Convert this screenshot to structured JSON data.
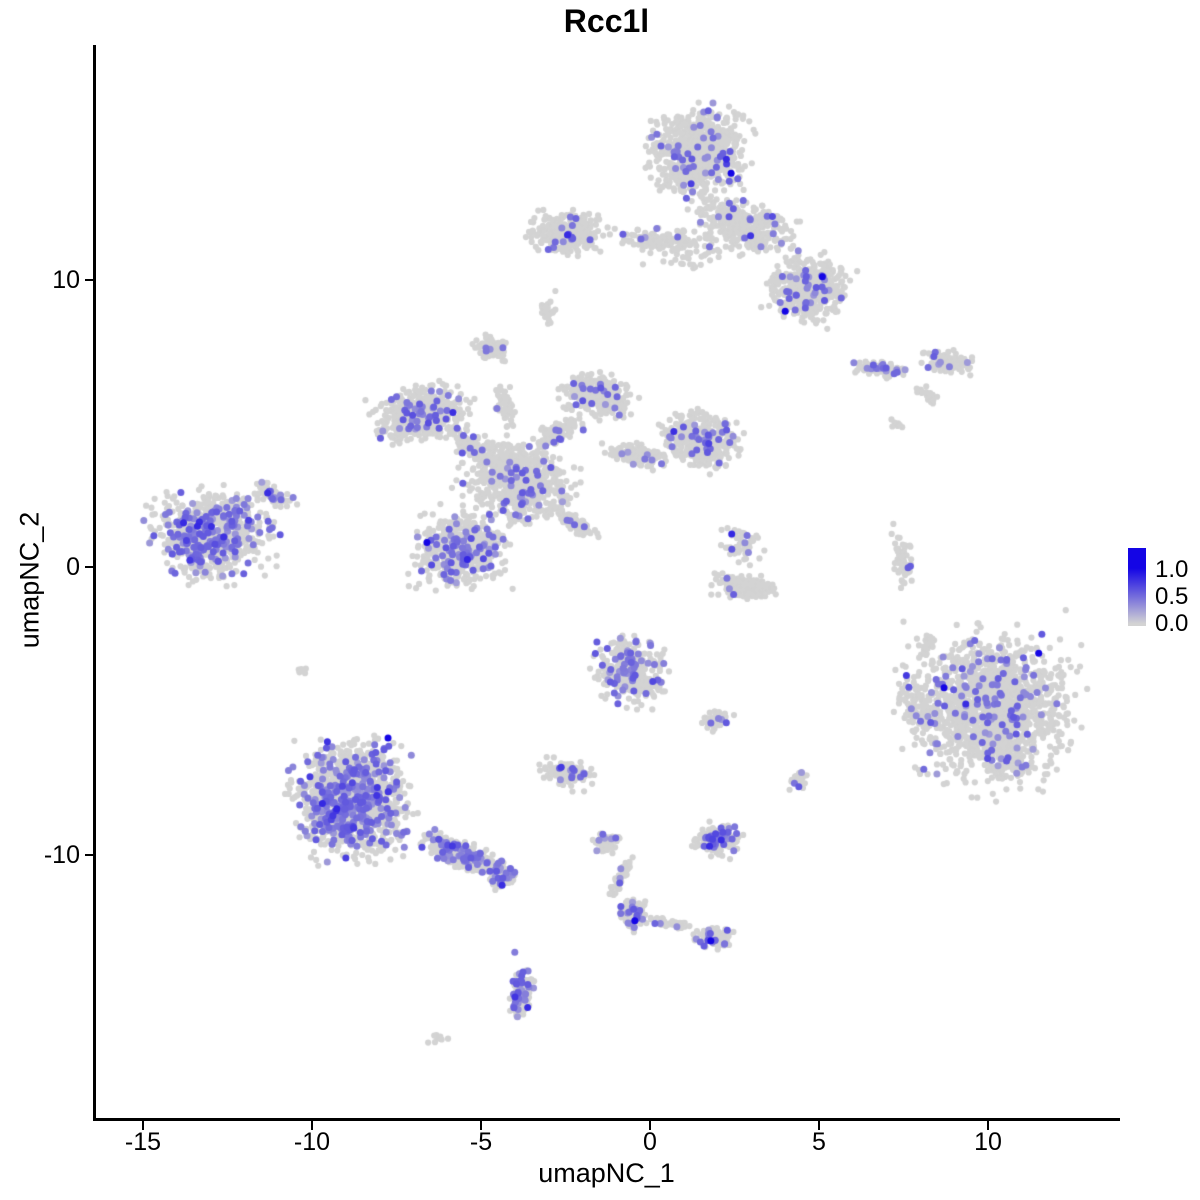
{
  "title": "Rcc1l",
  "axes": {
    "x_label": "umapNC_1",
    "y_label": "umapNC_2",
    "x_tick_labels": [
      "-15",
      "-10",
      "-5",
      "0",
      "5",
      "10"
    ],
    "x_tick_values": [
      -15,
      -10,
      -5,
      0,
      5,
      10
    ],
    "y_tick_labels": [
      "-10",
      "0",
      "10"
    ],
    "y_tick_values": [
      -10,
      0,
      10
    ]
  },
  "legend": {
    "tick_labels": [
      "1.0",
      "0.5",
      "0.0"
    ],
    "tick_values": [
      1.0,
      0.5,
      0.0
    ]
  },
  "chart_data": {
    "type": "scatter",
    "title": "Rcc1l",
    "xlabel": "umapNC_1",
    "ylabel": "umapNC_2",
    "xlim": [
      -16.4,
      13.9
    ],
    "ylim": [
      -19.2,
      18.2
    ],
    "grid": false,
    "legend_position": "right",
    "colorbar": {
      "low": 0.0,
      "high": 1.0,
      "low_color": "#D3D3D3",
      "high_color": "#1405E5"
    },
    "seed": 1337,
    "clusters": [
      {
        "name": "top-main-blob",
        "cx": 1.5,
        "cy": 14.5,
        "rx": 1.9,
        "ry": 2.0,
        "rot": 0,
        "n": 700,
        "f": 0.07
      },
      {
        "name": "top-neck",
        "cx": 2.8,
        "cy": 11.9,
        "rx": 2.0,
        "ry": 1.1,
        "rot": -20,
        "n": 330,
        "f": 0.05
      },
      {
        "name": "top-right-lobe",
        "cx": 4.7,
        "cy": 9.7,
        "rx": 1.5,
        "ry": 1.5,
        "rot": -30,
        "n": 400,
        "f": 0.08
      },
      {
        "name": "top-left-arm",
        "cx": -2.5,
        "cy": 11.6,
        "rx": 1.4,
        "ry": 1.0,
        "rot": 0,
        "n": 240,
        "f": 0.06
      },
      {
        "name": "top-arm-connector",
        "cx": 0.2,
        "cy": 11.4,
        "rx": 1.5,
        "ry": 0.45,
        "rot": 0,
        "n": 110,
        "f": 0.04
      },
      {
        "name": "small-grey-blob",
        "cx": -3.1,
        "cy": 8.9,
        "rx": 0.4,
        "ry": 0.6,
        "rot": 0,
        "n": 26,
        "f": 0
      },
      {
        "name": "top-sparse",
        "cx": 1.3,
        "cy": 11.0,
        "rx": 1.7,
        "ry": 1.0,
        "rot": 0,
        "n": 50,
        "f": 0.04
      },
      {
        "name": "small-left-blob",
        "cx": -4.7,
        "cy": 7.6,
        "rx": 0.65,
        "ry": 0.6,
        "rot": 0,
        "n": 80,
        "f": 0.05
      },
      {
        "name": "mid-upperleft-lobe",
        "cx": -6.8,
        "cy": 5.3,
        "rx": 1.8,
        "ry": 1.2,
        "rot": 20,
        "n": 450,
        "f": 0.1
      },
      {
        "name": "mid-top-lobe",
        "cx": -1.5,
        "cy": 6.0,
        "rx": 1.4,
        "ry": 0.95,
        "rot": -15,
        "n": 300,
        "f": 0.06
      },
      {
        "name": "mid-right-lobe",
        "cx": 1.5,
        "cy": 4.4,
        "rx": 1.5,
        "ry": 1.2,
        "rot": -20,
        "n": 400,
        "f": 0.08
      },
      {
        "name": "mid-central",
        "cx": -3.9,
        "cy": 3.0,
        "rx": 2.0,
        "ry": 1.7,
        "rot": -30,
        "n": 650,
        "f": 0.07
      },
      {
        "name": "mid-conn-a",
        "cx": -5.3,
        "cy": 4.2,
        "rx": 1.2,
        "ry": 0.5,
        "rot": -35,
        "n": 130,
        "f": 0.05
      },
      {
        "name": "mid-conn-b",
        "cx": -2.7,
        "cy": 4.7,
        "rx": 1.0,
        "ry": 0.45,
        "rot": 35,
        "n": 110,
        "f": 0.05
      },
      {
        "name": "mid-conn-c",
        "cx": -0.4,
        "cy": 3.9,
        "rx": 1.3,
        "ry": 0.5,
        "rot": -15,
        "n": 130,
        "f": 0.05
      },
      {
        "name": "mid-conn-se",
        "cx": -2.2,
        "cy": 1.5,
        "rx": 1.2,
        "ry": 0.35,
        "rot": -40,
        "n": 80,
        "f": 0.05
      },
      {
        "name": "mid-conn-up",
        "cx": -4.3,
        "cy": 5.6,
        "rx": 0.35,
        "ry": 1.0,
        "rot": 10,
        "n": 50,
        "f": 0.02
      },
      {
        "name": "mid-round-blob",
        "cx": -5.6,
        "cy": 0.6,
        "rx": 1.7,
        "ry": 1.75,
        "rot": 0,
        "n": 460,
        "f": 0.18
      },
      {
        "name": "left-cluster",
        "cx": -13.0,
        "cy": 1.1,
        "rx": 2.25,
        "ry": 2.05,
        "rot": 10,
        "n": 620,
        "f": 0.3
      },
      {
        "name": "left-cluster-tail",
        "cx": -11.2,
        "cy": 2.5,
        "rx": 0.95,
        "ry": 0.4,
        "rot": -35,
        "n": 60,
        "f": 0.18
      },
      {
        "name": "right-strip-a",
        "cx": 6.8,
        "cy": 6.9,
        "rx": 0.95,
        "ry": 0.35,
        "rot": -8,
        "n": 85,
        "f": 0.18
      },
      {
        "name": "right-strip-b",
        "cx": 8.8,
        "cy": 7.1,
        "rx": 0.9,
        "ry": 0.5,
        "rot": -10,
        "n": 110,
        "f": 0.06
      },
      {
        "name": "right-strip-c",
        "cx": 8.2,
        "cy": 6.0,
        "rx": 0.5,
        "ry": 0.2,
        "rot": -40,
        "n": 22,
        "f": 0
      },
      {
        "name": "right-tiny-dots",
        "cx": 7.3,
        "cy": 4.9,
        "rx": 0.3,
        "ry": 0.4,
        "rot": 0,
        "n": 7,
        "f": 0
      },
      {
        "name": "right-vert-strip",
        "cx": 7.5,
        "cy": 0.2,
        "rx": 0.35,
        "ry": 1.15,
        "rot": 8,
        "n": 60,
        "f": 0.04
      },
      {
        "name": "crescent-sparse",
        "cx": 2.7,
        "cy": 0.8,
        "rx": 0.9,
        "ry": 1.0,
        "rot": 0,
        "n": 45,
        "f": 0.1
      },
      {
        "name": "crescent-blob",
        "cx": 2.8,
        "cy": -0.7,
        "rx": 1.35,
        "ry": 0.55,
        "rot": -5,
        "n": 170,
        "f": 0.02
      },
      {
        "name": "right-big-cluster",
        "cx": 10.1,
        "cy": -5.0,
        "rx": 3.0,
        "ry": 3.4,
        "rot": 0,
        "n": 1350,
        "f": 0.09
      },
      {
        "name": "right-appendage",
        "cx": 7.9,
        "cy": -4.8,
        "rx": 0.8,
        "ry": 1.7,
        "rot": 15,
        "n": 80,
        "f": 0.04
      },
      {
        "name": "right-strand",
        "cx": 8.2,
        "cy": -2.8,
        "rx": 0.3,
        "ry": 0.9,
        "rot": -25,
        "n": 22,
        "f": 0
      },
      {
        "name": "midbottom-blob",
        "cx": -0.6,
        "cy": -3.6,
        "rx": 1.35,
        "ry": 1.6,
        "rot": 0,
        "n": 300,
        "f": 0.2
      },
      {
        "name": "small-blob-b",
        "cx": -2.5,
        "cy": -7.2,
        "rx": 1.05,
        "ry": 0.65,
        "rot": -10,
        "n": 90,
        "f": 0.12
      },
      {
        "name": "tiny-blob-c",
        "cx": 2.0,
        "cy": -5.3,
        "rx": 0.65,
        "ry": 0.45,
        "rot": 0,
        "n": 40,
        "f": 0.1
      },
      {
        "name": "tiny-blob-d",
        "cx": 4.4,
        "cy": -7.4,
        "rx": 0.45,
        "ry": 0.45,
        "rot": 0,
        "n": 25,
        "f": 0.12
      },
      {
        "name": "bottomleft-cluster",
        "cx": -8.8,
        "cy": -8.1,
        "rx": 2.15,
        "ry": 2.65,
        "rot": 5,
        "n": 950,
        "f": 0.33
      },
      {
        "name": "bottomleft-tail",
        "cx": -5.6,
        "cy": -10.0,
        "rx": 1.6,
        "ry": 0.6,
        "rot": -27,
        "n": 220,
        "f": 0.27
      },
      {
        "name": "bottomleft-tip",
        "cx": -4.4,
        "cy": -10.7,
        "rx": 0.55,
        "ry": 0.6,
        "rot": 0,
        "n": 80,
        "f": 0.3
      },
      {
        "name": "chain-top-blob",
        "cx": -1.3,
        "cy": -9.6,
        "rx": 0.5,
        "ry": 0.5,
        "rot": 0,
        "n": 40,
        "f": 0.15
      },
      {
        "name": "chain-strand",
        "cx": -0.9,
        "cy": -10.9,
        "rx": 0.22,
        "ry": 1.2,
        "rot": -23,
        "n": 45,
        "f": 0.06
      },
      {
        "name": "chain-lower-blob",
        "cx": -0.5,
        "cy": -12.1,
        "rx": 0.5,
        "ry": 0.75,
        "rot": 0,
        "n": 75,
        "f": 0.22
      },
      {
        "name": "chain-right-arm",
        "cx": 0.7,
        "cy": -12.4,
        "rx": 1.05,
        "ry": 0.25,
        "rot": -10,
        "n": 40,
        "f": 0.08
      },
      {
        "name": "chain-end-blob",
        "cx": 1.9,
        "cy": -12.9,
        "rx": 0.7,
        "ry": 0.5,
        "rot": 0,
        "n": 70,
        "f": 0.2
      },
      {
        "name": "small-round-blob",
        "cx": 2.0,
        "cy": -9.5,
        "rx": 0.9,
        "ry": 0.75,
        "rot": 0,
        "n": 140,
        "f": 0.25
      },
      {
        "name": "bottom-vert-blob",
        "cx": -3.8,
        "cy": -14.8,
        "rx": 0.45,
        "ry": 1.1,
        "rot": -8,
        "n": 85,
        "f": 0.45
      },
      {
        "name": "bottom-tiny-blob",
        "cx": -6.3,
        "cy": -16.4,
        "rx": 0.35,
        "ry": 0.3,
        "rot": 0,
        "n": 10,
        "f": 0
      },
      {
        "name": "isolated-pair",
        "cx": -10.3,
        "cy": -3.6,
        "rx": 0.3,
        "ry": 0.25,
        "rot": 0,
        "n": 5,
        "f": 0
      }
    ],
    "extra_points": [
      {
        "x": 7.2,
        "y": 1.5,
        "t": 0
      },
      {
        "x": 7.15,
        "y": 1.15,
        "t": 0
      },
      {
        "x": 7.5,
        "y": -1.9,
        "t": 0
      },
      {
        "x": -2.8,
        "y": 9.6,
        "t": 0
      },
      {
        "x": 12.3,
        "y": -1.5,
        "t": 0
      },
      {
        "x": -4.0,
        "y": -13.4,
        "t": 0.42
      }
    ],
    "highlight_points": [
      {
        "x": -7.75,
        "y": -5.95
      },
      {
        "x": 4.0,
        "y": 8.9
      },
      {
        "x": 5.1,
        "y": 10.1
      },
      {
        "x": 2.4,
        "y": 13.7
      },
      {
        "x": -6.6,
        "y": 0.85
      },
      {
        "x": 8.7,
        "y": -4.2
      },
      {
        "x": 11.5,
        "y": -3.0
      },
      {
        "x": -0.45,
        "y": -12.3
      },
      {
        "x": 1.8,
        "y": -13.0
      }
    ]
  }
}
